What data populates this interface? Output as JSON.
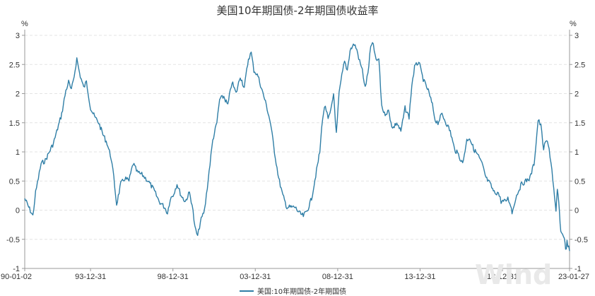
{
  "chart_data": {
    "type": "line",
    "title": "美国10年期国债-2年期国债收益率",
    "unit_left": "%",
    "unit_right": "%",
    "ylim": [
      -1,
      3
    ],
    "y_ticks": [
      "-1",
      "-0.5",
      "0",
      "0.5",
      "1",
      "1.5",
      "2",
      "2.5",
      "3"
    ],
    "x_ticks": [
      "90-01-02",
      "93-12-31",
      "98-12-31",
      "03-12-31",
      "08-12-31",
      "13-12-31",
      "18-12-31",
      "23-01-27"
    ],
    "grid": true,
    "legend_position": "bottom-center",
    "watermark": "Wind",
    "color": "#2f7ea6",
    "series": [
      {
        "name": "美国:10年期国债-2年期国债",
        "points": [
          [
            "1990-01-02",
            0.2
          ],
          [
            "1990-04-01",
            0.05
          ],
          [
            "1990-07-01",
            -0.1
          ],
          [
            "1990-09-01",
            0.3
          ],
          [
            "1991-01-01",
            0.8
          ],
          [
            "1991-04-01",
            0.85
          ],
          [
            "1991-07-01",
            1.0
          ],
          [
            "1991-10-01",
            1.15
          ],
          [
            "1992-01-01",
            1.4
          ],
          [
            "1992-04-01",
            1.65
          ],
          [
            "1992-07-01",
            2.05
          ],
          [
            "1992-09-01",
            2.2
          ],
          [
            "1992-11-01",
            2.05
          ],
          [
            "1993-01-01",
            2.3
          ],
          [
            "1993-03-01",
            2.6
          ],
          [
            "1993-05-01",
            2.35
          ],
          [
            "1993-08-01",
            2.1
          ],
          [
            "1993-10-01",
            2.2
          ],
          [
            "1994-01-01",
            1.75
          ],
          [
            "1994-04-01",
            1.6
          ],
          [
            "1994-07-01",
            1.5
          ],
          [
            "1994-10-01",
            1.3
          ],
          [
            "1995-01-01",
            1.15
          ],
          [
            "1995-04-01",
            0.9
          ],
          [
            "1995-06-01",
            0.55
          ],
          [
            "1995-08-01",
            0.1
          ],
          [
            "1995-11-01",
            0.45
          ],
          [
            "1996-02-01",
            0.55
          ],
          [
            "1996-05-01",
            0.5
          ],
          [
            "1996-08-01",
            0.8
          ],
          [
            "1996-11-01",
            0.65
          ],
          [
            "1997-03-01",
            0.6
          ],
          [
            "1997-07-01",
            0.5
          ],
          [
            "1997-11-01",
            0.35
          ],
          [
            "1998-03-01",
            0.15
          ],
          [
            "1998-07-01",
            0.05
          ],
          [
            "1998-09-01",
            -0.05
          ],
          [
            "1998-11-01",
            0.2
          ],
          [
            "1999-01-01",
            0.25
          ],
          [
            "1999-04-01",
            0.45
          ],
          [
            "1999-07-01",
            0.25
          ],
          [
            "1999-10-01",
            0.15
          ],
          [
            "2000-01-01",
            0.3
          ],
          [
            "2000-03-01",
            0.1
          ],
          [
            "2000-05-01",
            -0.3
          ],
          [
            "2000-07-01",
            -0.45
          ],
          [
            "2000-09-01",
            -0.2
          ],
          [
            "2000-12-01",
            0.0
          ],
          [
            "2001-02-01",
            0.4
          ],
          [
            "2001-04-01",
            0.8
          ],
          [
            "2001-06-01",
            1.2
          ],
          [
            "2001-09-01",
            1.5
          ],
          [
            "2001-11-01",
            1.9
          ],
          [
            "2002-02-01",
            1.95
          ],
          [
            "2002-05-01",
            1.8
          ],
          [
            "2002-08-01",
            2.2
          ],
          [
            "2002-11-01",
            2.0
          ],
          [
            "2003-02-01",
            2.3
          ],
          [
            "2003-05-01",
            2.1
          ],
          [
            "2003-08-01",
            2.6
          ],
          [
            "2003-10-01",
            2.7
          ],
          [
            "2003-12-01",
            2.4
          ],
          [
            "2004-03-01",
            2.3
          ],
          [
            "2004-06-01",
            2.05
          ],
          [
            "2004-09-01",
            1.8
          ],
          [
            "2004-12-01",
            1.5
          ],
          [
            "2005-03-01",
            1.0
          ],
          [
            "2005-06-01",
            0.55
          ],
          [
            "2005-09-01",
            0.25
          ],
          [
            "2005-12-01",
            0.05
          ],
          [
            "2006-03-01",
            0.05
          ],
          [
            "2006-06-01",
            0.05
          ],
          [
            "2006-09-01",
            -0.05
          ],
          [
            "2006-12-01",
            -0.1
          ],
          [
            "2007-03-01",
            0.0
          ],
          [
            "2007-06-01",
            0.2
          ],
          [
            "2007-09-01",
            0.6
          ],
          [
            "2007-12-01",
            1.0
          ],
          [
            "2008-02-01",
            1.6
          ],
          [
            "2008-04-01",
            1.8
          ],
          [
            "2008-06-01",
            1.55
          ],
          [
            "2008-08-01",
            1.7
          ],
          [
            "2008-10-01",
            2.0
          ],
          [
            "2008-12-01",
            1.3
          ],
          [
            "2009-02-01",
            2.0
          ],
          [
            "2009-04-01",
            2.3
          ],
          [
            "2009-06-01",
            2.55
          ],
          [
            "2009-08-01",
            2.4
          ],
          [
            "2009-10-01",
            2.75
          ],
          [
            "2010-01-01",
            2.85
          ],
          [
            "2010-03-01",
            2.75
          ],
          [
            "2010-05-01",
            2.55
          ],
          [
            "2010-07-01",
            2.4
          ],
          [
            "2010-09-01",
            2.1
          ],
          [
            "2010-11-01",
            2.35
          ],
          [
            "2011-01-01",
            2.8
          ],
          [
            "2011-03-01",
            2.85
          ],
          [
            "2011-05-01",
            2.55
          ],
          [
            "2011-07-01",
            2.6
          ],
          [
            "2011-09-01",
            1.8
          ],
          [
            "2011-11-01",
            1.65
          ],
          [
            "2012-02-01",
            1.7
          ],
          [
            "2012-05-01",
            1.4
          ],
          [
            "2012-08-01",
            1.5
          ],
          [
            "2012-11-01",
            1.35
          ],
          [
            "2013-02-01",
            1.75
          ],
          [
            "2013-05-01",
            1.6
          ],
          [
            "2013-07-01",
            2.15
          ],
          [
            "2013-09-01",
            2.45
          ],
          [
            "2013-12-01",
            2.55
          ],
          [
            "2014-02-01",
            2.35
          ],
          [
            "2014-04-01",
            2.2
          ],
          [
            "2014-07-01",
            2.05
          ],
          [
            "2014-10-01",
            1.8
          ],
          [
            "2014-12-01",
            1.55
          ],
          [
            "2015-02-01",
            1.5
          ],
          [
            "2015-05-01",
            1.65
          ],
          [
            "2015-08-01",
            1.5
          ],
          [
            "2015-11-01",
            1.35
          ],
          [
            "2016-02-01",
            1.05
          ],
          [
            "2016-05-01",
            0.95
          ],
          [
            "2016-08-01",
            0.8
          ],
          [
            "2016-11-01",
            1.2
          ],
          [
            "2017-01-01",
            1.25
          ],
          [
            "2017-04-01",
            1.05
          ],
          [
            "2017-07-01",
            0.95
          ],
          [
            "2017-10-01",
            0.8
          ],
          [
            "2018-01-01",
            0.55
          ],
          [
            "2018-04-01",
            0.45
          ],
          [
            "2018-07-01",
            0.3
          ],
          [
            "2018-10-01",
            0.3
          ],
          [
            "2018-12-01",
            0.15
          ],
          [
            "2019-03-01",
            0.15
          ],
          [
            "2019-05-01",
            0.2
          ],
          [
            "2019-07-01",
            0.1
          ],
          [
            "2019-08-01",
            -0.05
          ],
          [
            "2019-10-01",
            0.15
          ],
          [
            "2019-12-01",
            0.3
          ],
          [
            "2020-03-01",
            0.45
          ],
          [
            "2020-06-01",
            0.5
          ],
          [
            "2020-09-01",
            0.55
          ],
          [
            "2020-12-01",
            0.8
          ],
          [
            "2021-02-01",
            1.3
          ],
          [
            "2021-03-01",
            1.55
          ],
          [
            "2021-05-01",
            1.45
          ],
          [
            "2021-07-01",
            1.05
          ],
          [
            "2021-09-01",
            1.2
          ],
          [
            "2021-11-01",
            1.05
          ],
          [
            "2022-01-01",
            0.7
          ],
          [
            "2022-03-01",
            0.2
          ],
          [
            "2022-04-01",
            -0.05
          ],
          [
            "2022-05-01",
            0.35
          ],
          [
            "2022-06-01",
            0.15
          ],
          [
            "2022-07-01",
            -0.25
          ],
          [
            "2022-08-01",
            -0.4
          ],
          [
            "2022-10-01",
            -0.45
          ],
          [
            "2022-11-01",
            -0.7
          ],
          [
            "2022-12-01",
            -0.55
          ],
          [
            "2023-01-27",
            -0.7
          ]
        ]
      }
    ]
  }
}
